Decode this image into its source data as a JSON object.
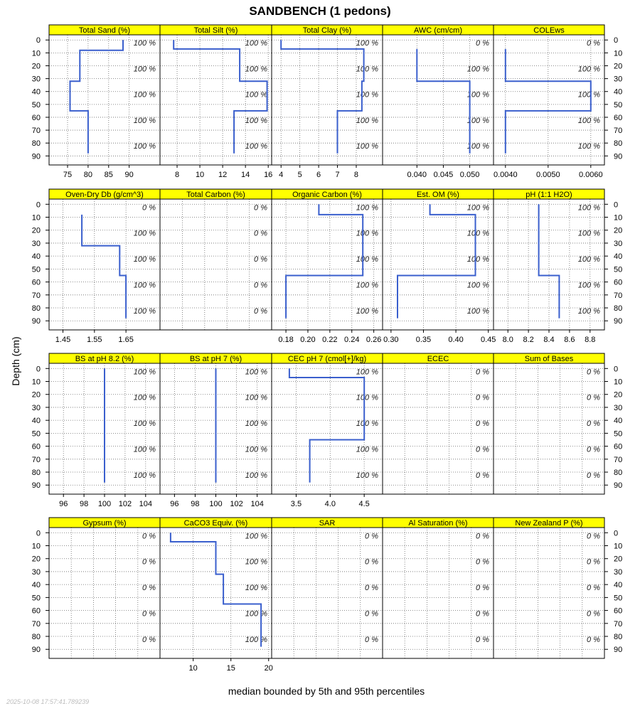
{
  "chart_data": {
    "type": "line",
    "title": "SANDBENCH (1 pedons)",
    "xlabel": "median bounded by 5th and 95th percentiles",
    "ylabel": "Depth (cm)",
    "ylim": [
      97,
      -4
    ],
    "depth_ticks": [
      0,
      10,
      20,
      30,
      40,
      50,
      60,
      70,
      80,
      90
    ],
    "grid": true,
    "timestamp": "2025-10-08 17:57:41.789239",
    "panels": [
      {
        "name": "Total Sand (%)",
        "xlim": [
          70.5,
          97.5
        ],
        "ticks": [
          75,
          80,
          85,
          90
        ],
        "tick_labels": [
          "75",
          "80",
          "85",
          "90"
        ],
        "pct_labels": [
          "100 %",
          "100 %",
          "100 %",
          "100 %",
          "100 %"
        ],
        "pct_depths": [
          0,
          20,
          40,
          60,
          80
        ],
        "profile": [
          [
            88.5,
            0
          ],
          [
            88.5,
            8
          ],
          [
            78,
            8
          ],
          [
            78,
            32
          ],
          [
            75.6,
            32
          ],
          [
            75.6,
            55
          ],
          [
            80,
            55
          ],
          [
            80,
            88
          ]
        ]
      },
      {
        "name": "Total Silt (%)",
        "xlim": [
          6.5,
          16.3
        ],
        "ticks": [
          8,
          10,
          12,
          14,
          16
        ],
        "tick_labels": [
          "8",
          "10",
          "12",
          "14",
          "16"
        ],
        "pct_labels": [
          "100 %",
          "100 %",
          "100 %",
          "100 %",
          "100 %"
        ],
        "pct_depths": [
          0,
          20,
          40,
          60,
          80
        ],
        "profile": [
          [
            7.7,
            0
          ],
          [
            7.7,
            7
          ],
          [
            13.5,
            7
          ],
          [
            13.5,
            32
          ],
          [
            15.9,
            32
          ],
          [
            15.9,
            55
          ],
          [
            13,
            55
          ],
          [
            13,
            88
          ]
        ]
      },
      {
        "name": "Total Clay (%)",
        "xlim": [
          3.5,
          9.4
        ],
        "ticks": [
          4,
          5,
          6,
          7,
          8
        ],
        "tick_labels": [
          "4",
          "5",
          "6",
          "7",
          "8"
        ],
        "pct_labels": [
          "100 %",
          "100 %",
          "100 %",
          "100 %",
          "100 %"
        ],
        "pct_depths": [
          0,
          20,
          40,
          60,
          80
        ],
        "profile": [
          [
            4,
            0
          ],
          [
            4,
            7
          ],
          [
            8.4,
            7
          ],
          [
            8.4,
            32
          ],
          [
            8.3,
            32
          ],
          [
            8.3,
            55
          ],
          [
            7,
            55
          ],
          [
            7,
            88
          ]
        ]
      },
      {
        "name": "AWC (cm/cm)",
        "xlim": [
          0.0335,
          0.0545
        ],
        "ticks": [
          0.04,
          0.045,
          0.05
        ],
        "tick_labels": [
          "0.040",
          "0.045",
          "0.050"
        ],
        "pct_labels": [
          "0 %",
          "100 %",
          "100 %",
          "100 %",
          "100 %"
        ],
        "pct_depths": [
          0,
          20,
          40,
          60,
          80
        ],
        "profile": [
          [
            0.04,
            7
          ],
          [
            0.04,
            32
          ],
          [
            0.05,
            32
          ],
          [
            0.05,
            88
          ]
        ]
      },
      {
        "name": "COLEws",
        "xlim": [
          0.00372,
          0.00632
        ],
        "ticks": [
          0.004,
          0.005,
          0.006
        ],
        "tick_labels": [
          "0.0040",
          "0.0050",
          "0.0060"
        ],
        "pct_labels": [
          "0 %",
          "100 %",
          "100 %",
          "100 %",
          "100 %"
        ],
        "pct_depths": [
          0,
          20,
          40,
          60,
          80
        ],
        "profile": [
          [
            0.004,
            7
          ],
          [
            0.004,
            32
          ],
          [
            0.006,
            32
          ],
          [
            0.006,
            55
          ],
          [
            0.004,
            55
          ],
          [
            0.004,
            88
          ]
        ]
      },
      {
        "name": "Oven-Dry Db (g/cm^3)",
        "xlim": [
          1.406,
          1.758
        ],
        "ticks": [
          1.45,
          1.55,
          1.65
        ],
        "tick_labels": [
          "1.45",
          "1.55",
          "1.65"
        ],
        "pct_labels": [
          "0 %",
          "100 %",
          "100 %",
          "100 %",
          "100 %"
        ],
        "pct_depths": [
          0,
          20,
          40,
          60,
          80
        ],
        "profile": [
          [
            1.51,
            8
          ],
          [
            1.51,
            32
          ],
          [
            1.63,
            32
          ],
          [
            1.63,
            55
          ],
          [
            1.65,
            55
          ],
          [
            1.65,
            88
          ]
        ]
      },
      {
        "name": "Total Carbon (%)",
        "xlim": [
          0,
          1
        ],
        "ticks": [],
        "tick_labels": [],
        "pct_labels": [
          "0 %",
          "0 %",
          "0 %",
          "0 %",
          "0 %"
        ],
        "pct_depths": [
          0,
          20,
          40,
          60,
          80
        ],
        "profile": []
      },
      {
        "name": "Organic Carbon (%)",
        "xlim": [
          0.167,
          0.268
        ],
        "ticks": [
          0.18,
          0.2,
          0.22,
          0.24,
          0.26
        ],
        "tick_labels": [
          "0.18",
          "0.20",
          "0.22",
          "0.24",
          "0.26"
        ],
        "pct_labels": [
          "100 %",
          "100 %",
          "100 %",
          "100 %",
          "100 %"
        ],
        "pct_depths": [
          0,
          20,
          40,
          60,
          80
        ],
        "profile": [
          [
            0.21,
            0
          ],
          [
            0.21,
            8
          ],
          [
            0.25,
            8
          ],
          [
            0.25,
            55
          ],
          [
            0.18,
            55
          ],
          [
            0.18,
            88
          ]
        ]
      },
      {
        "name": "Est. OM (%)",
        "xlim": [
          0.287,
          0.458
        ],
        "ticks": [
          0.3,
          0.35,
          0.4,
          0.45
        ],
        "tick_labels": [
          "0.30",
          "0.35",
          "0.40",
          "0.45"
        ],
        "pct_labels": [
          "100 %",
          "100 %",
          "100 %",
          "100 %",
          "100 %"
        ],
        "pct_depths": [
          0,
          20,
          40,
          60,
          80
        ],
        "profile": [
          [
            0.36,
            0
          ],
          [
            0.36,
            8
          ],
          [
            0.43,
            8
          ],
          [
            0.43,
            55
          ],
          [
            0.31,
            55
          ],
          [
            0.31,
            88
          ]
        ]
      },
      {
        "name": "pH (1:1 H2O)",
        "xlim": [
          7.86,
          8.94
        ],
        "ticks": [
          8,
          8.2,
          8.4,
          8.6,
          8.8
        ],
        "tick_labels": [
          "8.0",
          "8.2",
          "8.4",
          "8.6",
          "8.8"
        ],
        "pct_labels": [
          "100 %",
          "100 %",
          "100 %",
          "100 %",
          "100 %"
        ],
        "pct_depths": [
          0,
          20,
          40,
          60,
          80
        ],
        "profile": [
          [
            8.3,
            0
          ],
          [
            8.3,
            55
          ],
          [
            8.5,
            55
          ],
          [
            8.5,
            88
          ]
        ]
      },
      {
        "name": "BS at pH 8.2 (%)",
        "xlim": [
          94.6,
          105.4
        ],
        "ticks": [
          96,
          98,
          100,
          102,
          104
        ],
        "tick_labels": [
          "96",
          "98",
          "100",
          "102",
          "104"
        ],
        "pct_labels": [
          "100 %",
          "100 %",
          "100 %",
          "100 %",
          "100 %"
        ],
        "pct_depths": [
          0,
          20,
          40,
          60,
          80
        ],
        "profile": [
          [
            100,
            0
          ],
          [
            100,
            88
          ]
        ]
      },
      {
        "name": "BS at pH 7 (%)",
        "xlim": [
          94.6,
          105.4
        ],
        "ticks": [
          96,
          98,
          100,
          102,
          104
        ],
        "tick_labels": [
          "96",
          "98",
          "100",
          "102",
          "104"
        ],
        "pct_labels": [
          "100 %",
          "100 %",
          "100 %",
          "100 %",
          "100 %"
        ],
        "pct_depths": [
          0,
          20,
          40,
          60,
          80
        ],
        "profile": [
          [
            100,
            0
          ],
          [
            100,
            88
          ]
        ]
      },
      {
        "name": "CEC pH 7 (cmol[+]/kg)",
        "xlim": [
          3.14,
          4.77
        ],
        "ticks": [
          3.5,
          4,
          4.5
        ],
        "tick_labels": [
          "3.5",
          "4.0",
          "4.5"
        ],
        "pct_labels": [
          "100 %",
          "100 %",
          "100 %",
          "100 %",
          "100 %"
        ],
        "pct_depths": [
          0,
          20,
          40,
          60,
          80
        ],
        "profile": [
          [
            3.4,
            0
          ],
          [
            3.4,
            7
          ],
          [
            4.5,
            7
          ],
          [
            4.5,
            55
          ],
          [
            3.7,
            55
          ],
          [
            3.7,
            88
          ]
        ]
      },
      {
        "name": "ECEC",
        "xlim": [
          0,
          1
        ],
        "ticks": [],
        "tick_labels": [],
        "pct_labels": [
          "0 %",
          "0 %",
          "0 %",
          "0 %",
          "0 %"
        ],
        "pct_depths": [
          0,
          20,
          40,
          60,
          80
        ],
        "profile": []
      },
      {
        "name": "Sum of Bases",
        "xlim": [
          0,
          1
        ],
        "ticks": [],
        "tick_labels": [],
        "pct_labels": [
          "0 %",
          "0 %",
          "0 %",
          "0 %",
          "0 %"
        ],
        "pct_depths": [
          0,
          20,
          40,
          60,
          80
        ],
        "profile": []
      },
      {
        "name": "Gypsum (%)",
        "xlim": [
          0,
          1
        ],
        "ticks": [],
        "tick_labels": [],
        "pct_labels": [
          "0 %",
          "0 %",
          "0 %",
          "0 %",
          "0 %"
        ],
        "pct_depths": [
          0,
          20,
          40,
          60,
          80
        ],
        "profile": []
      },
      {
        "name": "CaCO3 Equiv. (%)",
        "xlim": [
          5.6,
          20.4
        ],
        "ticks": [
          10,
          15,
          20
        ],
        "tick_labels": [
          "10",
          "15",
          "20"
        ],
        "pct_labels": [
          "100 %",
          "100 %",
          "100 %",
          "100 %",
          "100 %"
        ],
        "pct_depths": [
          0,
          20,
          40,
          60,
          80
        ],
        "profile": [
          [
            7,
            0
          ],
          [
            7,
            7
          ],
          [
            13,
            7
          ],
          [
            13,
            32
          ],
          [
            14,
            32
          ],
          [
            14,
            55
          ],
          [
            19,
            55
          ],
          [
            19,
            88
          ]
        ]
      },
      {
        "name": "SAR",
        "xlim": [
          0,
          1
        ],
        "ticks": [],
        "tick_labels": [],
        "pct_labels": [
          "0 %",
          "0 %",
          "0 %",
          "0 %",
          "0 %"
        ],
        "pct_depths": [
          0,
          20,
          40,
          60,
          80
        ],
        "profile": []
      },
      {
        "name": "Al Saturation (%)",
        "xlim": [
          0,
          1
        ],
        "ticks": [],
        "tick_labels": [],
        "pct_labels": [
          "0 %",
          "0 %",
          "0 %",
          "0 %",
          "0 %"
        ],
        "pct_depths": [
          0,
          20,
          40,
          60,
          80
        ],
        "profile": []
      },
      {
        "name": "New Zealand P (%)",
        "xlim": [
          0,
          1
        ],
        "ticks": [],
        "tick_labels": [],
        "pct_labels": [
          "0 %",
          "0 %",
          "0 %",
          "0 %",
          "0 %"
        ],
        "pct_depths": [
          0,
          20,
          40,
          60,
          80
        ],
        "profile": []
      }
    ]
  },
  "colors": {
    "strip": "#ffff00",
    "line": "#3a5fcd",
    "grid": "#6a6a6a",
    "frame": "#000000"
  }
}
